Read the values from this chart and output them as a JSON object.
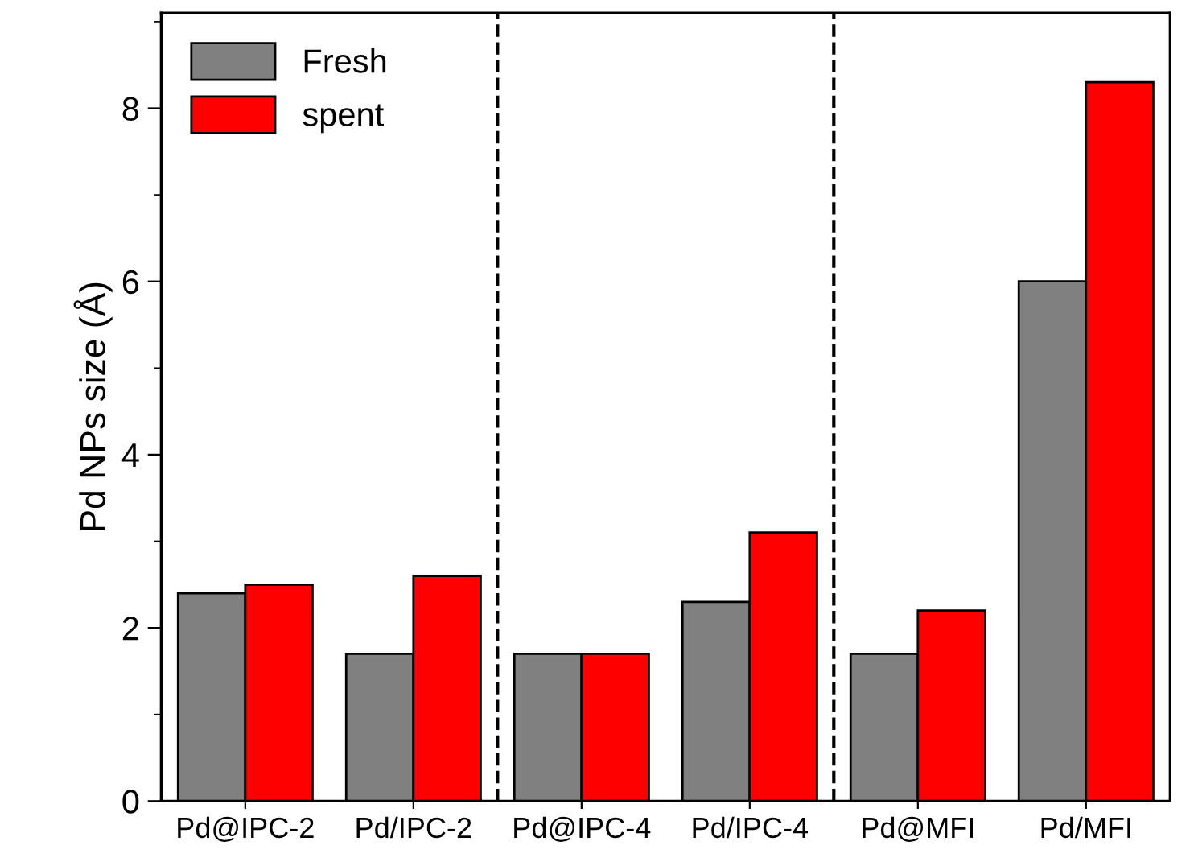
{
  "chart_data": {
    "type": "bar",
    "ylabel": "Pd NPs size (Å)",
    "categories": [
      "Pd@IPC-2",
      "Pd/IPC-2",
      "Pd@IPC-4",
      "Pd/IPC-4",
      "Pd@MFI",
      "Pd/MFI"
    ],
    "series": [
      {
        "name": "Fresh",
        "color": "#808080",
        "values": [
          2.4,
          1.7,
          1.7,
          2.3,
          1.7,
          6.0
        ]
      },
      {
        "name": "spent",
        "color": "#ff0000",
        "values": [
          2.5,
          2.6,
          1.7,
          3.1,
          2.2,
          8.3
        ]
      }
    ],
    "ylim": [
      0,
      9.1
    ],
    "yticks": [
      0,
      2,
      4,
      6,
      8
    ],
    "grid": false,
    "legend": "top left"
  }
}
